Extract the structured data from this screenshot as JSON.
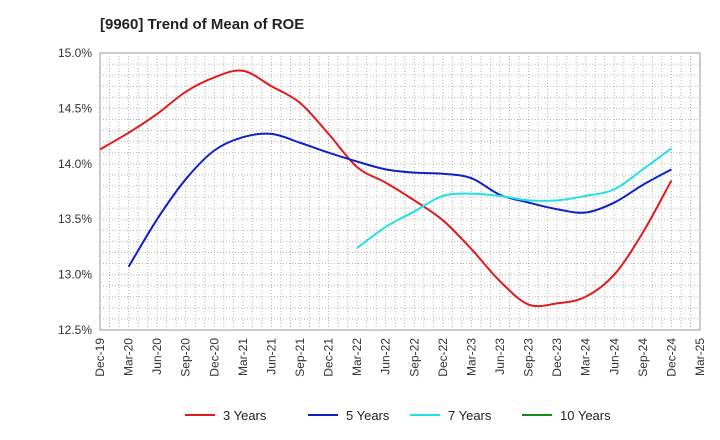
{
  "chart_data": {
    "type": "line",
    "title": "[9960]  Trend of Mean of ROE",
    "xlabel": "",
    "ylabel": "",
    "ylim": [
      12.5,
      15.0
    ],
    "y_ticks": [
      "12.5%",
      "13.0%",
      "13.5%",
      "14.0%",
      "14.5%",
      "15.0%"
    ],
    "x_ticks": [
      "Dec-19",
      "Mar-20",
      "Jun-20",
      "Sep-20",
      "Dec-20",
      "Mar-21",
      "Jun-21",
      "Sep-21",
      "Dec-21",
      "Mar-22",
      "Jun-22",
      "Sep-22",
      "Dec-22",
      "Mar-23",
      "Jun-23",
      "Sep-23",
      "Dec-23",
      "Mar-24",
      "Jun-24",
      "Sep-24",
      "Dec-24",
      "Mar-25"
    ],
    "grid": true,
    "legend_position": "bottom",
    "series": [
      {
        "name": "3 Years",
        "color": "#e31a1c",
        "x": [
          "Dec-19",
          "Mar-20",
          "Jun-20",
          "Sep-20",
          "Dec-20",
          "Mar-21",
          "Jun-21",
          "Sep-21",
          "Dec-21",
          "Mar-22",
          "Jun-22",
          "Sep-22",
          "Dec-22",
          "Mar-23",
          "Jun-23",
          "Sep-23",
          "Dec-23",
          "Mar-24",
          "Jun-24",
          "Sep-24",
          "Dec-24"
        ],
        "values": [
          14.13,
          14.28,
          14.45,
          14.65,
          14.78,
          14.84,
          14.7,
          14.55,
          14.27,
          13.97,
          13.83,
          13.67,
          13.49,
          13.23,
          12.94,
          12.73,
          12.74,
          12.8,
          13.0,
          13.38,
          13.85
        ]
      },
      {
        "name": "5 Years",
        "color": "#1020c8",
        "x": [
          "Mar-20",
          "Jun-20",
          "Sep-20",
          "Dec-20",
          "Mar-21",
          "Jun-21",
          "Sep-21",
          "Dec-21",
          "Mar-22",
          "Jun-22",
          "Sep-22",
          "Dec-22",
          "Mar-23",
          "Jun-23",
          "Sep-23",
          "Dec-23",
          "Mar-24",
          "Jun-24",
          "Sep-24",
          "Dec-24"
        ],
        "values": [
          13.07,
          13.5,
          13.86,
          14.12,
          14.24,
          14.27,
          14.19,
          14.1,
          14.02,
          13.95,
          13.92,
          13.91,
          13.87,
          13.72,
          13.65,
          13.59,
          13.56,
          13.65,
          13.81,
          13.95
        ]
      },
      {
        "name": "7 Years",
        "color": "#22e0e8",
        "x": [
          "Mar-22",
          "Jun-22",
          "Sep-22",
          "Dec-22",
          "Mar-23",
          "Jun-23",
          "Sep-23",
          "Dec-23",
          "Mar-24",
          "Jun-24",
          "Sep-24",
          "Dec-24"
        ],
        "values": [
          13.24,
          13.43,
          13.57,
          13.71,
          13.73,
          13.71,
          13.67,
          13.67,
          13.71,
          13.77,
          13.95,
          14.14
        ]
      },
      {
        "name": "10 Years",
        "color": "#1a8a1a",
        "x": [],
        "values": []
      }
    ]
  }
}
